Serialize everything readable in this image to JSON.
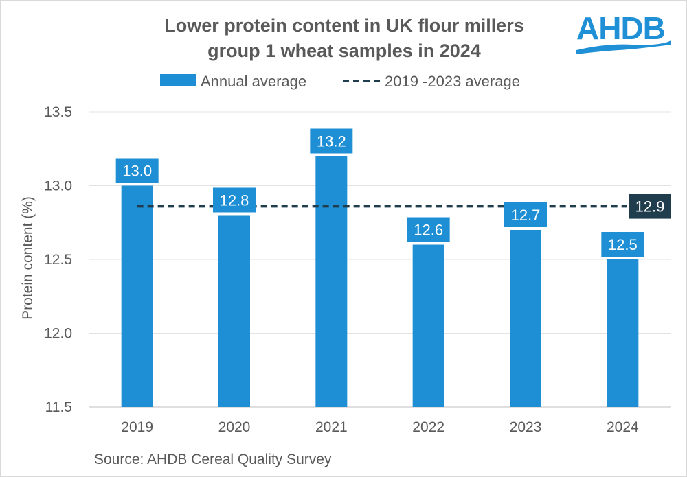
{
  "chart_data": {
    "type": "bar",
    "title": [
      "Lower protein content in UK flour millers",
      "group 1 wheat samples in 2024"
    ],
    "categories": [
      "2019",
      "2020",
      "2021",
      "2022",
      "2023",
      "2024"
    ],
    "series": [
      {
        "name": "Annual average",
        "values": [
          13.0,
          12.8,
          13.2,
          12.6,
          12.7,
          12.5
        ],
        "color": "#1e8fd5"
      }
    ],
    "reference_line": {
      "name": "2019 -2023 average",
      "value": 12.86,
      "label": "12.9",
      "color": "#1f3d4d",
      "style": "dashed"
    },
    "data_labels": [
      "13.0",
      "12.8",
      "13.2",
      "12.6",
      "12.7",
      "12.5"
    ],
    "ylabel": "Protein content (%)",
    "xlabel": "",
    "ylim": [
      11.5,
      13.5
    ],
    "yticks": [
      11.5,
      12.0,
      12.5,
      13.0,
      13.5
    ],
    "ytick_labels": [
      "11.5",
      "12.0",
      "12.5",
      "13.0",
      "13.5"
    ],
    "grid": true,
    "legend_position": "top",
    "source": "Source: AHDB Cereal Quality Survey"
  },
  "logo": {
    "text": "AHDB",
    "color": "#1f8fd6"
  }
}
